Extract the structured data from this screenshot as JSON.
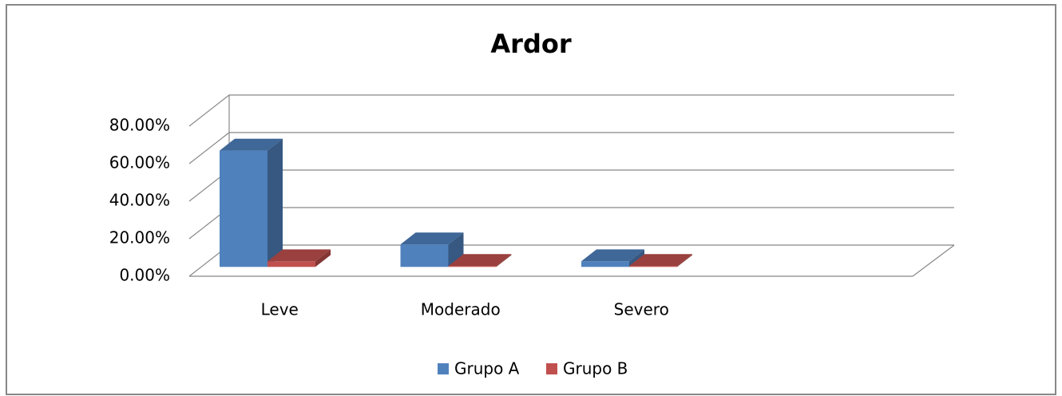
{
  "chart_data": {
    "type": "bar3d",
    "title": "Ardor",
    "categories": [
      "Leve",
      "Moderado",
      "Severo",
      null
    ],
    "series": [
      {
        "name": "Grupo A",
        "color": "#4f81bd",
        "values": [
          62,
          12,
          3,
          null
        ]
      },
      {
        "name": "Grupo B",
        "color": "#c0504d",
        "values": [
          3,
          0.5,
          0.5,
          null
        ]
      }
    ],
    "ylim": [
      0,
      80
    ],
    "yticks": [
      {
        "value": 0,
        "label": "0.00%"
      },
      {
        "value": 20,
        "label": "20.00%"
      },
      {
        "value": 40,
        "label": "40.00%"
      },
      {
        "value": 60,
        "label": "60.00%"
      },
      {
        "value": 80,
        "label": "80.00%"
      }
    ],
    "grid": true,
    "legend": "bottom"
  }
}
